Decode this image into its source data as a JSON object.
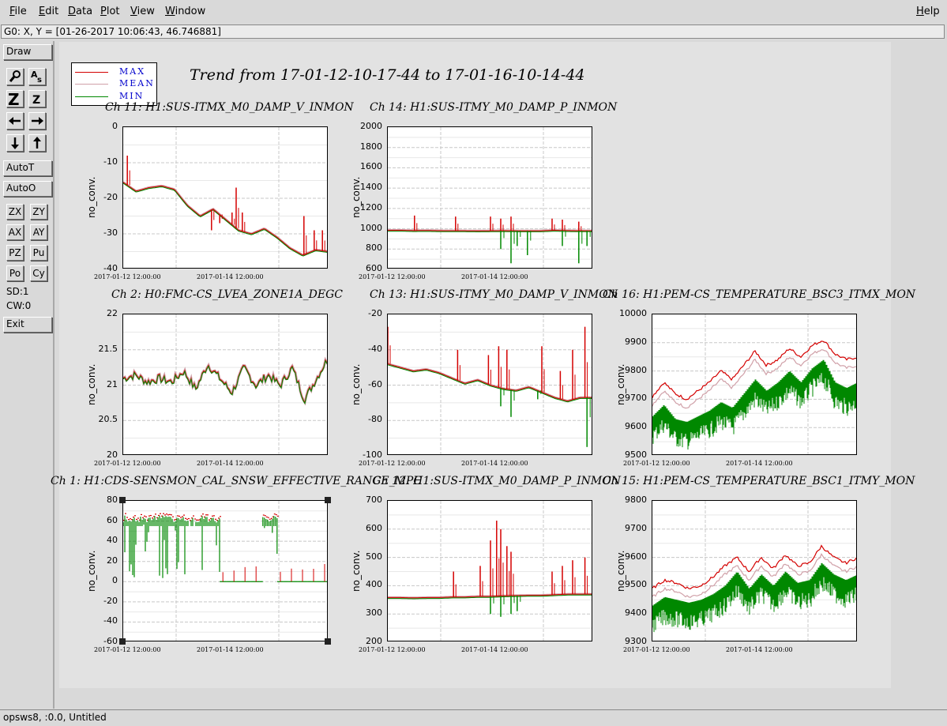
{
  "menu": {
    "items": [
      "File",
      "Edit",
      "Data",
      "Plot",
      "View",
      "Window"
    ],
    "help": "Help"
  },
  "coordinate_readout": "G0: X, Y = [01-26-2017 10:06:43, 46.746881]",
  "toolbar": {
    "draw": "Draw",
    "auto_t": "AutoT",
    "auto_o": "AutoO",
    "zoom_x": "ZX",
    "zoom_y": "ZY",
    "auto_x": "AX",
    "auto_y": "AY",
    "pz": "PZ",
    "pu": "Pu",
    "po": "Po",
    "cy": "Cy",
    "sd": "SD:1",
    "cw": "CW:0",
    "exit": "Exit",
    "icons": {
      "magnify": "magnifier-icon",
      "text": "text-icon",
      "zoom_big": "zoom-in-icon",
      "zoom_small": "zoom-out-icon",
      "left": "arrow-left-icon",
      "right": "arrow-right-icon",
      "down": "arrow-down-icon",
      "up": "arrow-up-icon"
    }
  },
  "legend": {
    "max": "MAX",
    "mean": "MEAN",
    "min": "MIN",
    "colors": {
      "max": "#d40000",
      "mean": "#d0a0a8",
      "min": "#008800"
    }
  },
  "title": "Trend from 17-01-12-10-17-44 to 17-01-16-10-14-44",
  "x_ticks": [
    "2017-01-12 12:00:00",
    "2017-01-14 12:00:00"
  ],
  "y_label": "no_conv.",
  "status": "opsws8, :0.0, Untitled",
  "chart_data": [
    {
      "type": "line",
      "title": "Ch 11: H1:SUS-ITMX_M0_DAMP_V_INMON",
      "ylabel": "no_conv.",
      "ylim": [
        -40,
        0
      ],
      "yticks": [
        "0",
        "-10",
        "-20",
        "-30",
        "-40"
      ],
      "xticks": [
        "2017-01-12 12:00:00",
        "2017-01-14 12:00:00"
      ],
      "mean_curve": [
        -15.5,
        -18,
        -17,
        -16.5,
        -17.5,
        -22,
        -25,
        -23,
        -26,
        -29,
        -30,
        -28.5,
        -31,
        -34,
        -36,
        -34.5,
        -35
      ],
      "spikes": [
        [
          0.02,
          -8
        ],
        [
          0.43,
          -29
        ],
        [
          0.47,
          -27
        ],
        [
          0.53,
          -24
        ],
        [
          0.55,
          -17
        ],
        [
          0.58,
          -24
        ],
        [
          0.88,
          -25
        ],
        [
          0.93,
          -29
        ],
        [
          0.97,
          -29
        ]
      ]
    },
    {
      "type": "line",
      "title": "Ch 14: H1:SUS-ITMY_M0_DAMP_P_INMON",
      "ylabel": "no_conv.",
      "ylim": [
        600,
        2000
      ],
      "yticks": [
        "2000",
        "1800",
        "1600",
        "1400",
        "1200",
        "1000",
        "800",
        "600"
      ],
      "xticks": [
        "2017-01-12 12:00:00",
        "2017-01-14 12:00:00"
      ],
      "mean_curve": [
        985,
        985,
        982,
        983,
        981,
        980,
        980,
        979,
        980,
        981,
        980,
        979,
        980,
        985,
        982,
        980,
        980
      ],
      "spikes": [
        [
          0.13,
          1130
        ],
        [
          0.33,
          1120
        ],
        [
          0.5,
          1120
        ],
        [
          0.55,
          1100
        ],
        [
          0.6,
          1120
        ],
        [
          0.8,
          1100
        ],
        [
          0.85,
          1090
        ],
        [
          0.93,
          1070
        ]
      ],
      "dips": [
        [
          0.55,
          800
        ],
        [
          0.6,
          660
        ],
        [
          0.63,
          830
        ],
        [
          0.68,
          740
        ],
        [
          0.85,
          830
        ],
        [
          0.93,
          660
        ],
        [
          0.97,
          830
        ]
      ]
    },
    {
      "type": "line",
      "title": "Ch 2: H0:FMC-CS_LVEA_ZONE1A_DEGC",
      "ylabel": "no_conv.",
      "ylim": [
        20,
        22
      ],
      "yticks": [
        "22",
        "21.5",
        "21",
        "20.5",
        "20"
      ],
      "xticks": [
        "2017-01-12 12:00:00",
        "2017-01-14 12:00:00"
      ],
      "mean_curve": [
        21.1,
        21.15,
        21.05,
        21.1,
        21.05,
        21.2,
        20.95,
        21.3,
        21.1,
        20.9,
        21.25,
        21.0,
        21.15,
        21.0,
        21.25,
        20.8,
        21.1,
        21.4
      ]
    },
    {
      "type": "line",
      "title": "Ch 13: H1:SUS-ITMY_M0_DAMP_V_INMON",
      "ylabel": "no_conv.",
      "ylim": [
        -100,
        -20
      ],
      "yticks": [
        "-20",
        "-40",
        "-60",
        "-80",
        "-100"
      ],
      "xticks": [
        "2017-01-12 12:00:00",
        "2017-01-14 12:00:00"
      ],
      "mean_curve": [
        -48,
        -50,
        -52,
        -51,
        -53,
        -56,
        -59,
        -57,
        -60,
        -62,
        -63,
        -61,
        -64,
        -67,
        -69,
        -67,
        -67
      ],
      "spikes": [
        [
          0.0,
          -27
        ],
        [
          0.34,
          -40
        ],
        [
          0.49,
          -43
        ],
        [
          0.54,
          -38
        ],
        [
          0.58,
          -40
        ],
        [
          0.75,
          -38
        ],
        [
          0.84,
          -52
        ],
        [
          0.9,
          -40
        ],
        [
          0.96,
          -27
        ]
      ],
      "dips": [
        [
          0.55,
          -72
        ],
        [
          0.6,
          -78
        ],
        [
          0.73,
          -68
        ],
        [
          0.97,
          -95
        ]
      ]
    },
    {
      "type": "line",
      "title": "Ch 16: H1:PEM-CS_TEMPERATURE_BSC3_ITMX_MON",
      "ylabel": "no_conv.",
      "ylim": [
        9500,
        10000
      ],
      "yticks": [
        "10000",
        "9900",
        "9800",
        "9700",
        "9600",
        "9500"
      ],
      "xticks": [
        "2017-01-12 12:00:00",
        "2017-01-14 12:00:00"
      ],
      "max_curve": [
        9710,
        9760,
        9720,
        9700,
        9730,
        9760,
        9800,
        9770,
        9820,
        9870,
        9820,
        9840,
        9880,
        9850,
        9890,
        9910,
        9860,
        9840,
        9850
      ],
      "min_curve": [
        9600,
        9640,
        9590,
        9580,
        9600,
        9620,
        9650,
        9630,
        9680,
        9730,
        9690,
        9720,
        9760,
        9720,
        9770,
        9800,
        9720,
        9700,
        9720
      ]
    },
    {
      "type": "line",
      "title": "Ch 1: H1:CDS-SENSMON_CAL_SNSW_EFFECTIVE_RANGE_MPC",
      "ylabel": "no_conv.",
      "ylim": [
        -60,
        80
      ],
      "yticks": [
        "80",
        "60",
        "40",
        "20",
        "0",
        "-20",
        "-40",
        "-60"
      ],
      "xticks": [
        "2017-01-12 12:00:00",
        "2017-01-14 12:00:00"
      ],
      "segments": [
        [
          0.0,
          0.47,
          62
        ],
        [
          0.47,
          0.68,
          0
        ],
        [
          0.68,
          0.75,
          62
        ],
        [
          0.75,
          1.0,
          0
        ]
      ]
    },
    {
      "type": "line",
      "title": "Ch 12: H1:SUS-ITMX_M0_DAMP_P_INMON",
      "ylabel": "no_conv.",
      "ylim": [
        200,
        700
      ],
      "yticks": [
        "700",
        "600",
        "500",
        "400",
        "300",
        "200"
      ],
      "xticks": [
        "2017-01-12 12:00:00",
        "2017-01-14 12:00:00"
      ],
      "mean_curve": [
        358,
        358,
        357,
        358,
        358,
        360,
        360,
        362,
        362,
        364,
        365,
        366,
        366,
        368,
        370,
        370,
        370
      ],
      "spikes": [
        [
          0.32,
          450
        ],
        [
          0.45,
          470
        ],
        [
          0.5,
          560
        ],
        [
          0.53,
          630
        ],
        [
          0.55,
          600
        ],
        [
          0.58,
          540
        ],
        [
          0.6,
          520
        ],
        [
          0.8,
          450
        ],
        [
          0.85,
          470
        ],
        [
          0.9,
          490
        ],
        [
          0.96,
          500
        ]
      ],
      "dips": [
        [
          0.5,
          300
        ],
        [
          0.55,
          290
        ],
        [
          0.6,
          300
        ],
        [
          0.63,
          310
        ]
      ]
    },
    {
      "type": "line",
      "title": "Ch 15: H1:PEM-CS_TEMPERATURE_BSC1_ITMY_MON",
      "ylabel": "no_conv.",
      "ylim": [
        9300,
        9800
      ],
      "yticks": [
        "9800",
        "9700",
        "9600",
        "9500",
        "9400",
        "9300"
      ],
      "xticks": [
        "2017-01-12 12:00:00",
        "2017-01-14 12:00:00"
      ],
      "max_curve": [
        9490,
        9520,
        9510,
        9490,
        9500,
        9530,
        9570,
        9600,
        9550,
        9600,
        9560,
        9610,
        9570,
        9580,
        9640,
        9600,
        9580,
        9600
      ],
      "min_curve": [
        9390,
        9420,
        9410,
        9400,
        9410,
        9430,
        9460,
        9510,
        9450,
        9500,
        9460,
        9510,
        9470,
        9480,
        9540,
        9500,
        9480,
        9500
      ]
    }
  ]
}
